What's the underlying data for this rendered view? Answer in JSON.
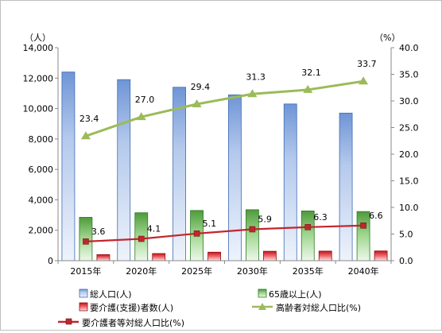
{
  "chart_data": {
    "type": "bar",
    "title": "",
    "categories": [
      "2015年",
      "2020年",
      "2025年",
      "2030年",
      "2035年",
      "2040年"
    ],
    "left_axis": {
      "unit": "（人）",
      "min": 0,
      "max": 14000,
      "step": 2000,
      "tick_labels": [
        "0",
        "2,000",
        "4,000",
        "6,000",
        "8,000",
        "10,000",
        "12,000",
        "14,000"
      ]
    },
    "right_axis": {
      "unit": "（%）",
      "min": 0,
      "max": 40,
      "step": 5,
      "tick_labels": [
        "0.0",
        "5.0",
        "10.0",
        "15.0",
        "20.0",
        "25.0",
        "30.0",
        "35.0",
        "40.0"
      ]
    },
    "grid": false,
    "legend_position": "bottom",
    "series": [
      {
        "name": "総人口(人)",
        "kind": "bar",
        "axis": "left",
        "color": "#9fbbe6",
        "values": [
          12400,
          11900,
          11400,
          10900,
          10300,
          9700
        ]
      },
      {
        "name": "65歳以上(人)",
        "kind": "bar",
        "axis": "left",
        "color": "#7cc06f",
        "values": [
          2850,
          3150,
          3300,
          3350,
          3270,
          3230
        ]
      },
      {
        "name": "要介護(支援)者数(人)",
        "kind": "bar",
        "axis": "left",
        "color": "#e8292f",
        "values": [
          400,
          470,
          560,
          620,
          630,
          640
        ]
      },
      {
        "name": "高齢者対総人口比(%)",
        "kind": "line",
        "axis": "right",
        "color": "#9bbb59",
        "values": [
          23.4,
          27.0,
          29.4,
          31.3,
          32.1,
          33.7
        ],
        "value_labels": [
          "23.4",
          "27.0",
          "29.4",
          "31.3",
          "32.1",
          "33.7"
        ]
      },
      {
        "name": "要介護者等対総人口比(%)",
        "kind": "line",
        "axis": "right",
        "color": "#c0272d",
        "values": [
          3.6,
          4.1,
          5.1,
          5.9,
          6.3,
          6.6
        ],
        "value_labels": [
          "3.6",
          "4.1",
          "5.1",
          "5.9",
          "6.3",
          "6.6"
        ]
      }
    ]
  }
}
